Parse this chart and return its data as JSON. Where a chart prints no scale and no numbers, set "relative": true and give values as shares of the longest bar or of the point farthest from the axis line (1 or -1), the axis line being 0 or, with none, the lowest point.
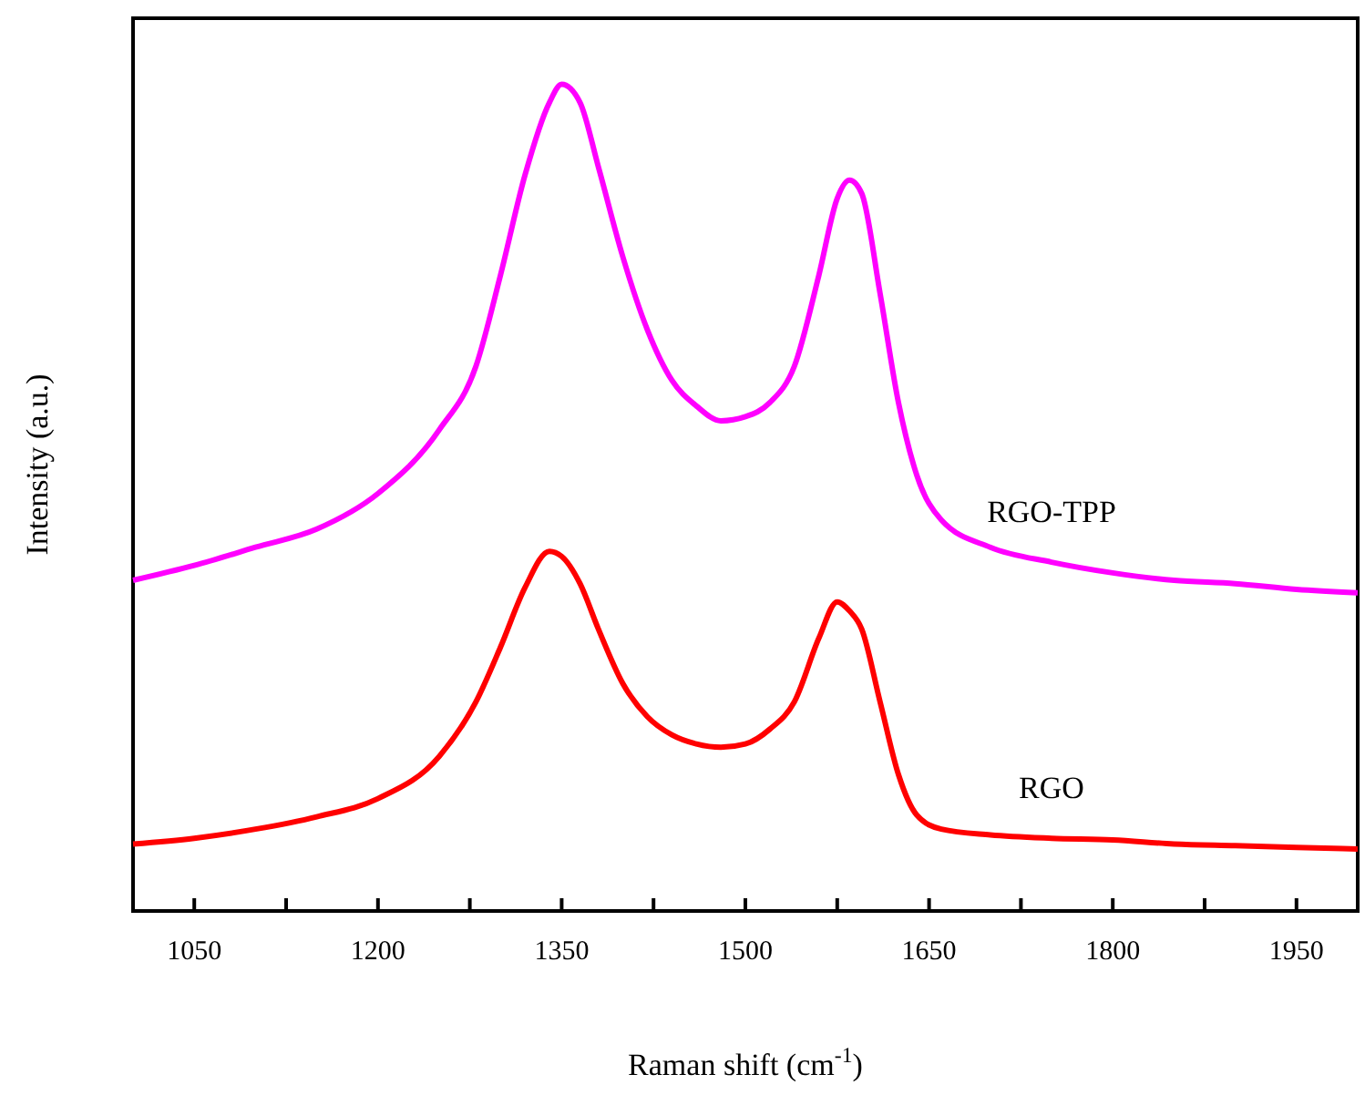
{
  "chart_data": {
    "type": "line",
    "relative": true,
    "xlabel": "Raman shift (cm$^{-1}$)",
    "ylabel": "Intensity (a.u.)",
    "x": [
      1000,
      1050,
      1100,
      1150,
      1200,
      1250,
      1280,
      1300,
      1320,
      1340,
      1350,
      1365,
      1380,
      1400,
      1420,
      1440,
      1460,
      1480,
      1500,
      1520,
      1540,
      1560,
      1575,
      1585,
      1595,
      1610,
      1625,
      1640,
      1660,
      1700,
      1750,
      1800,
      1850,
      1900,
      1950,
      2000
    ],
    "xlim": [
      1000,
      2000
    ],
    "xticks": [
      1050,
      {
        "value": 1125,
        "label": null
      },
      1200,
      {
        "value": 1275,
        "label": null
      },
      1350,
      {
        "value": 1425,
        "label": null
      },
      1500,
      {
        "value": 1575,
        "label": null
      },
      1650,
      {
        "value": 1725,
        "label": null
      },
      1800,
      {
        "value": 1875,
        "label": null
      },
      1950
    ],
    "series": [
      {
        "name": "RGO-TPP",
        "color": "#ff00ff",
        "values": [
          0.4,
          0.418,
          0.44,
          0.462,
          0.505,
          0.582,
          0.659,
          0.769,
          0.89,
          0.978,
          1,
          0.978,
          0.9,
          0.791,
          0.703,
          0.642,
          0.611,
          0.593,
          0.598,
          0.615,
          0.659,
          0.769,
          0.862,
          0.884,
          0.868,
          0.747,
          0.615,
          0.527,
          0.473,
          0.44,
          0.422,
          0.409,
          0.4,
          0.396,
          0.389,
          0.385
        ]
      },
      {
        "name": "RGO",
        "color": "#ff0000",
        "values": [
          0.081,
          0.088,
          0.099,
          0.114,
          0.136,
          0.187,
          0.253,
          0.319,
          0.391,
          0.435,
          0.429,
          0.396,
          0.341,
          0.275,
          0.235,
          0.213,
          0.202,
          0.198,
          0.202,
          0.22,
          0.253,
          0.33,
          0.374,
          0.363,
          0.341,
          0.253,
          0.165,
          0.116,
          0.099,
          0.092,
          0.088,
          0.086,
          0.081,
          0.079,
          0.077,
          0.075
        ]
      }
    ],
    "line_style": "solid",
    "marker": "none",
    "grid": false,
    "legend": false
  }
}
